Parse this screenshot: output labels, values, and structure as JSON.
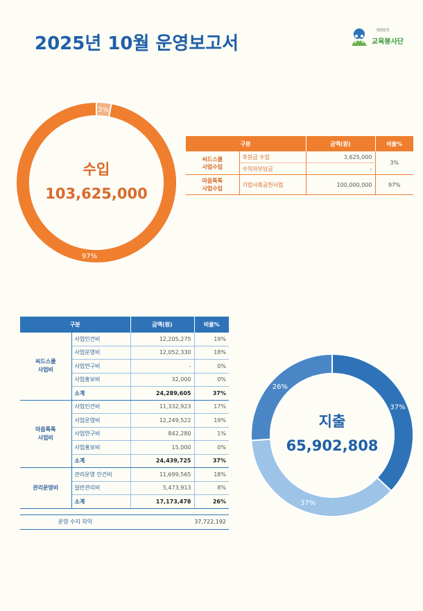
{
  "title": "2025년 10월 운영보고서",
  "logo": {
    "icon": "people-leaf-logo",
    "sub": "대한민국",
    "name": "교육봉사단"
  },
  "income": {
    "label": "수입",
    "amount": "103,625,000",
    "colors": {
      "main": "#ef7f2e",
      "minor": "#f4b183"
    },
    "chart_data": {
      "type": "pie",
      "categories": [
        "씨드스쿨 사업수입",
        "마음톡톡 사업수입"
      ],
      "values": [
        3,
        97
      ],
      "labels": [
        "3%",
        "97%"
      ]
    },
    "table": {
      "headers": [
        "구분",
        "금액(원)",
        "비율%"
      ],
      "groups": [
        {
          "name_line1": "씨드스쿨",
          "name_line2": "사업수입",
          "pct": "3%",
          "items": [
            {
              "name": "후원금 수입",
              "amount": "3,625,000"
            },
            {
              "name": "수익자부담금",
              "amount": "-"
            }
          ]
        },
        {
          "name_line1": "마음톡톡",
          "name_line2": "사업수입",
          "pct": "97%",
          "items": [
            {
              "name": "기업사회공헌사업",
              "amount": "100,000,000"
            }
          ]
        }
      ]
    }
  },
  "expense": {
    "label": "지출",
    "amount": "65,902,808",
    "colors": {
      "a": "#2e73b8",
      "b": "#9dc3e6",
      "c": "#4a86c5"
    },
    "chart_data": {
      "type": "pie",
      "categories": [
        "씨드스쿨 사업비",
        "마음톡톡 사업비",
        "관리운영비"
      ],
      "values": [
        37,
        37,
        26
      ],
      "labels": [
        "37%",
        "37%",
        "26%"
      ]
    },
    "table": {
      "headers": [
        "구분",
        "금액(원)",
        "비율%"
      ],
      "groups": [
        {
          "name_line1": "씨드스쿨",
          "name_line2": "사업비",
          "items": [
            {
              "name": "사업인건비",
              "amount": "12,205,275",
              "pct": "19%"
            },
            {
              "name": "사업운영비",
              "amount": "12,052,330",
              "pct": "18%"
            },
            {
              "name": "사업연구비",
              "amount": "-",
              "pct": "0%"
            },
            {
              "name": "사업홍보비",
              "amount": "32,000",
              "pct": "0%"
            },
            {
              "name": "소계",
              "amount": "24,289,605",
              "pct": "37%"
            }
          ]
        },
        {
          "name_line1": "마음톡톡",
          "name_line2": "사업비",
          "items": [
            {
              "name": "사업인건비",
              "amount": "11,332,923",
              "pct": "17%"
            },
            {
              "name": "사업운영비",
              "amount": "12,249,522",
              "pct": "19%"
            },
            {
              "name": "사업연구비",
              "amount": "842,280",
              "pct": "1%"
            },
            {
              "name": "사업홍보비",
              "amount": "15,000",
              "pct": "0%"
            },
            {
              "name": "소계",
              "amount": "24,439,725",
              "pct": "37%"
            }
          ]
        },
        {
          "name_line1": "관리운영비",
          "name_line2": "",
          "items": [
            {
              "name": "관리운영 인건비",
              "amount": "11,699,565",
              "pct": "18%"
            },
            {
              "name": "일반관리비",
              "amount": "5,473,913",
              "pct": "8%"
            },
            {
              "name": "소계",
              "amount": "17,173,478",
              "pct": "26%"
            }
          ]
        }
      ],
      "balance_label": "운영 수지 차익",
      "balance_value": "37,722,192"
    }
  }
}
